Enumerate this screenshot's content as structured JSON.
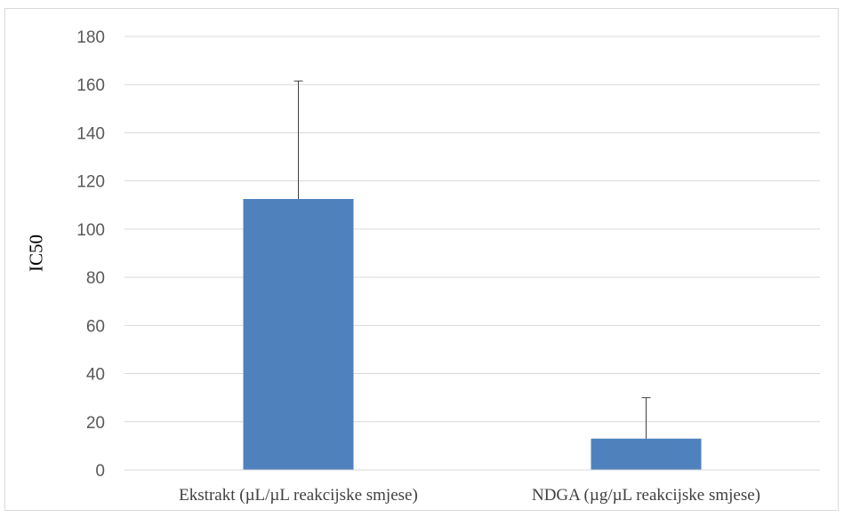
{
  "chart_data": {
    "type": "bar",
    "title": "",
    "xlabel": "",
    "ylabel": "IC50",
    "categories": [
      "Ekstrakt (µL/µL reakcijske smjese)",
      "NDGA (µg/µL reakcijske smjese)"
    ],
    "values": [
      112.5,
      13
    ],
    "error_upper": [
      49,
      17
    ],
    "ylim": [
      0,
      180
    ],
    "yticks": [
      0,
      20,
      40,
      60,
      80,
      100,
      120,
      140,
      160,
      180
    ],
    "grid": true,
    "legend": "none",
    "bar_color": "#4f81bd",
    "errorbar_color": "#404040",
    "gridline_color": "#d9d9d9"
  }
}
